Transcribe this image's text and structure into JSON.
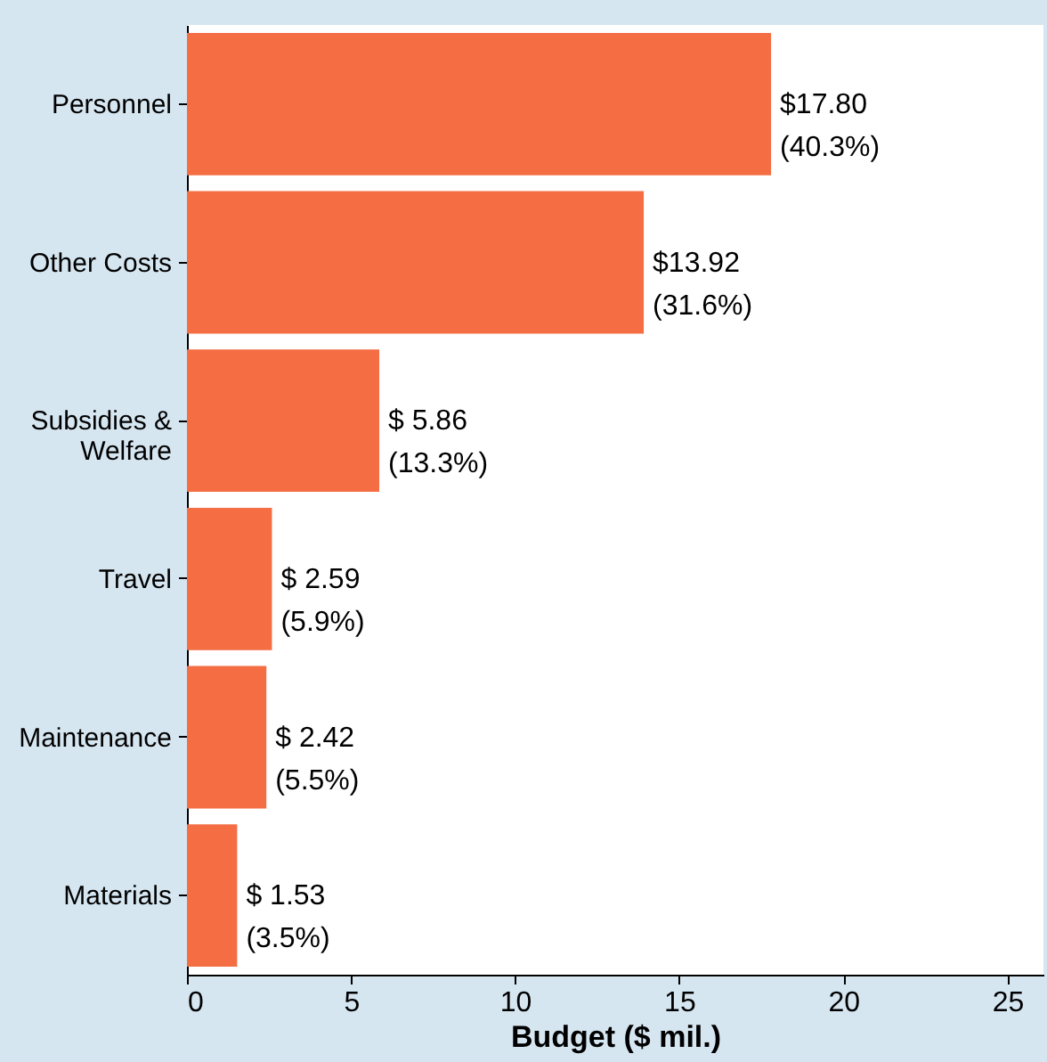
{
  "chart_data": {
    "type": "bar",
    "orientation": "horizontal",
    "xlabel": "Budget ($ mil.)",
    "categories": [
      "Personnel",
      "Other Costs",
      "Subsidies &\nWelfare",
      "Travel",
      "Maintenance",
      "Materials"
    ],
    "values": [
      17.8,
      13.92,
      5.86,
      2.59,
      2.42,
      1.53
    ],
    "value_labels": [
      "$17.80\n(40.3%)",
      "$13.92\n(31.6%)",
      "$ 5.86\n(13.3%)",
      "$ 2.59\n(5.9%)",
      "$ 2.42\n(5.5%)",
      "$ 1.53\n(3.5%)"
    ],
    "color": "#f46d43",
    "xlim": [
      0,
      26.1
    ],
    "xticks": [
      0,
      5,
      10,
      15,
      20,
      25
    ],
    "grid": false
  }
}
